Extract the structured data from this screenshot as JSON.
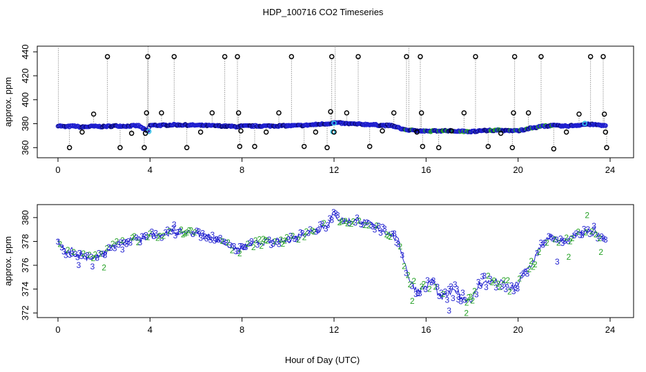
{
  "title": "HDP_100716  CO2 Timeseries",
  "chart_data": [
    {
      "type": "scatter",
      "panel": "top",
      "ylabel": "approx. ppm",
      "xlim": [
        0,
        24
      ],
      "ylim": [
        355,
        441
      ],
      "xticks": [
        "0",
        "4",
        "8",
        "12",
        "16",
        "20",
        "24"
      ],
      "yticks": [
        "360",
        "380",
        "400",
        "420",
        "440"
      ],
      "colors": {
        "main": "#1f1fcf",
        "dark": "#0a0a7a",
        "cyan": "#33c6e8",
        "green": "#22a022",
        "outlier": "#000000",
        "spike": "#8a8a8a"
      },
      "main_curve": [
        [
          0.0,
          378.5
        ],
        [
          0.3,
          377.4
        ],
        [
          0.7,
          378.1
        ],
        [
          1.0,
          377.1
        ],
        [
          1.5,
          377.8
        ],
        [
          2.0,
          377.6
        ],
        [
          2.5,
          378.2
        ],
        [
          3.0,
          378.0
        ],
        [
          3.5,
          378.4
        ],
        [
          3.9,
          373.5
        ],
        [
          4.0,
          378.7
        ],
        [
          4.5,
          378.6
        ],
        [
          5.0,
          379.1
        ],
        [
          6.0,
          378.7
        ],
        [
          7.0,
          378.2
        ],
        [
          7.8,
          377.5
        ],
        [
          8.0,
          378.0
        ],
        [
          9.0,
          378.1
        ],
        [
          10.0,
          378.3
        ],
        [
          10.6,
          378.5
        ],
        [
          11.2,
          379.3
        ],
        [
          11.8,
          380.1
        ],
        [
          12.0,
          380.9
        ],
        [
          12.5,
          380.1
        ],
        [
          13.0,
          379.6
        ],
        [
          13.5,
          379.4
        ],
        [
          14.0,
          378.7
        ],
        [
          14.5,
          378.4
        ],
        [
          15.0,
          375.4
        ],
        [
          15.5,
          374.3
        ],
        [
          16.0,
          373.6
        ],
        [
          16.5,
          374.1
        ],
        [
          17.0,
          374.0
        ],
        [
          17.5,
          373.8
        ],
        [
          18.0,
          373.5
        ],
        [
          18.5,
          374.3
        ],
        [
          19.0,
          374.6
        ],
        [
          19.5,
          374.4
        ],
        [
          20.0,
          374.1
        ],
        [
          20.5,
          376.1
        ],
        [
          21.0,
          377.7
        ],
        [
          21.5,
          378.5
        ],
        [
          22.0,
          377.9
        ],
        [
          22.5,
          378.6
        ],
        [
          23.0,
          379.5
        ],
        [
          23.5,
          379.0
        ],
        [
          23.8,
          378.3
        ]
      ],
      "outliers": [
        [
          0.5,
          360
        ],
        [
          1.05,
          373
        ],
        [
          1.55,
          388
        ],
        [
          2.15,
          436
        ],
        [
          2.7,
          360
        ],
        [
          3.2,
          372
        ],
        [
          3.75,
          360
        ],
        [
          3.85,
          389
        ],
        [
          3.9,
          436
        ],
        [
          3.8,
          372
        ],
        [
          4.5,
          389
        ],
        [
          5.05,
          436
        ],
        [
          5.6,
          360
        ],
        [
          6.2,
          373
        ],
        [
          6.7,
          389
        ],
        [
          7.25,
          436
        ],
        [
          7.8,
          436
        ],
        [
          7.85,
          389
        ],
        [
          7.9,
          361
        ],
        [
          7.95,
          374
        ],
        [
          8.55,
          361
        ],
        [
          9.05,
          373
        ],
        [
          9.6,
          389
        ],
        [
          10.15,
          436
        ],
        [
          10.7,
          361
        ],
        [
          11.2,
          373
        ],
        [
          11.7,
          360
        ],
        [
          11.85,
          390
        ],
        [
          11.9,
          436
        ],
        [
          12.0,
          373
        ],
        [
          12.55,
          389
        ],
        [
          13.05,
          436
        ],
        [
          13.55,
          361
        ],
        [
          14.1,
          374
        ],
        [
          14.6,
          389
        ],
        [
          15.15,
          436
        ],
        [
          15.6,
          373
        ],
        [
          15.75,
          436
        ],
        [
          15.8,
          389
        ],
        [
          15.85,
          361
        ],
        [
          16.55,
          360
        ],
        [
          17.1,
          374
        ],
        [
          17.65,
          389
        ],
        [
          18.15,
          436
        ],
        [
          18.7,
          361
        ],
        [
          19.25,
          372
        ],
        [
          19.75,
          360
        ],
        [
          19.8,
          389
        ],
        [
          19.85,
          436
        ],
        [
          20.45,
          389
        ],
        [
          21.0,
          436
        ],
        [
          21.55,
          359
        ],
        [
          22.1,
          373
        ],
        [
          22.65,
          388
        ],
        [
          23.15,
          436
        ],
        [
          23.7,
          436
        ],
        [
          23.75,
          388
        ],
        [
          23.8,
          373
        ],
        [
          23.85,
          360
        ]
      ],
      "outlier_labels": []
    },
    {
      "type": "scatter",
      "panel": "bottom",
      "ylabel": "approx. ppm",
      "xlabel": "Hour of Day (UTC)",
      "xlim": [
        0,
        24
      ],
      "ylim": [
        371.9,
        380.8
      ],
      "xticks": [
        "0",
        "4",
        "8",
        "12",
        "16",
        "20",
        "24"
      ],
      "yticks": [
        "372",
        "374",
        "376",
        "378",
        "380"
      ],
      "series": [
        {
          "name": "3",
          "color": "#1f1fcf"
        },
        {
          "name": "2",
          "color": "#22a022"
        }
      ],
      "curve": [
        [
          0.0,
          378.0
        ],
        [
          0.2,
          377.4
        ],
        [
          0.4,
          377.0
        ],
        [
          0.6,
          377.3
        ],
        [
          0.8,
          376.8
        ],
        [
          1.0,
          377.0
        ],
        [
          1.2,
          376.7
        ],
        [
          1.5,
          376.6
        ],
        [
          1.8,
          376.7
        ],
        [
          2.0,
          376.9
        ],
        [
          2.3,
          377.5
        ],
        [
          2.6,
          377.8
        ],
        [
          3.0,
          378.0
        ],
        [
          3.3,
          378.3
        ],
        [
          3.6,
          378.1
        ],
        [
          4.0,
          378.5
        ],
        [
          4.5,
          378.6
        ],
        [
          5.0,
          378.8
        ],
        [
          5.5,
          378.8
        ],
        [
          6.0,
          378.7
        ],
        [
          6.5,
          378.4
        ],
        [
          7.0,
          378.1
        ],
        [
          7.5,
          377.6
        ],
        [
          7.9,
          377.3
        ],
        [
          8.2,
          377.6
        ],
        [
          8.7,
          377.9
        ],
        [
          9.3,
          378.0
        ],
        [
          9.8,
          378.0
        ],
        [
          10.3,
          378.3
        ],
        [
          10.8,
          378.7
        ],
        [
          11.3,
          379.0
        ],
        [
          11.7,
          379.4
        ],
        [
          12.0,
          380.4
        ],
        [
          12.2,
          379.9
        ],
        [
          12.5,
          379.7
        ],
        [
          13.0,
          379.8
        ],
        [
          13.5,
          379.5
        ],
        [
          14.0,
          379.0
        ],
        [
          14.5,
          378.6
        ],
        [
          14.8,
          378.0
        ],
        [
          15.0,
          376.7
        ],
        [
          15.3,
          374.7
        ],
        [
          15.6,
          373.9
        ],
        [
          16.0,
          374.2
        ],
        [
          16.3,
          374.8
        ],
        [
          16.6,
          373.2
        ],
        [
          17.0,
          373.6
        ],
        [
          17.3,
          373.9
        ],
        [
          17.6,
          373.2
        ],
        [
          18.0,
          373.1
        ],
        [
          18.3,
          374.4
        ],
        [
          18.7,
          374.6
        ],
        [
          19.0,
          374.6
        ],
        [
          19.4,
          374.5
        ],
        [
          19.7,
          374.0
        ],
        [
          20.0,
          374.5
        ],
        [
          20.3,
          375.5
        ],
        [
          20.6,
          376.1
        ],
        [
          21.0,
          377.7
        ],
        [
          21.4,
          378.3
        ],
        [
          21.8,
          378.0
        ],
        [
          22.2,
          378.2
        ],
        [
          22.6,
          378.6
        ],
        [
          23.0,
          378.8
        ],
        [
          23.4,
          378.6
        ],
        [
          23.8,
          378.1
        ]
      ]
    }
  ]
}
